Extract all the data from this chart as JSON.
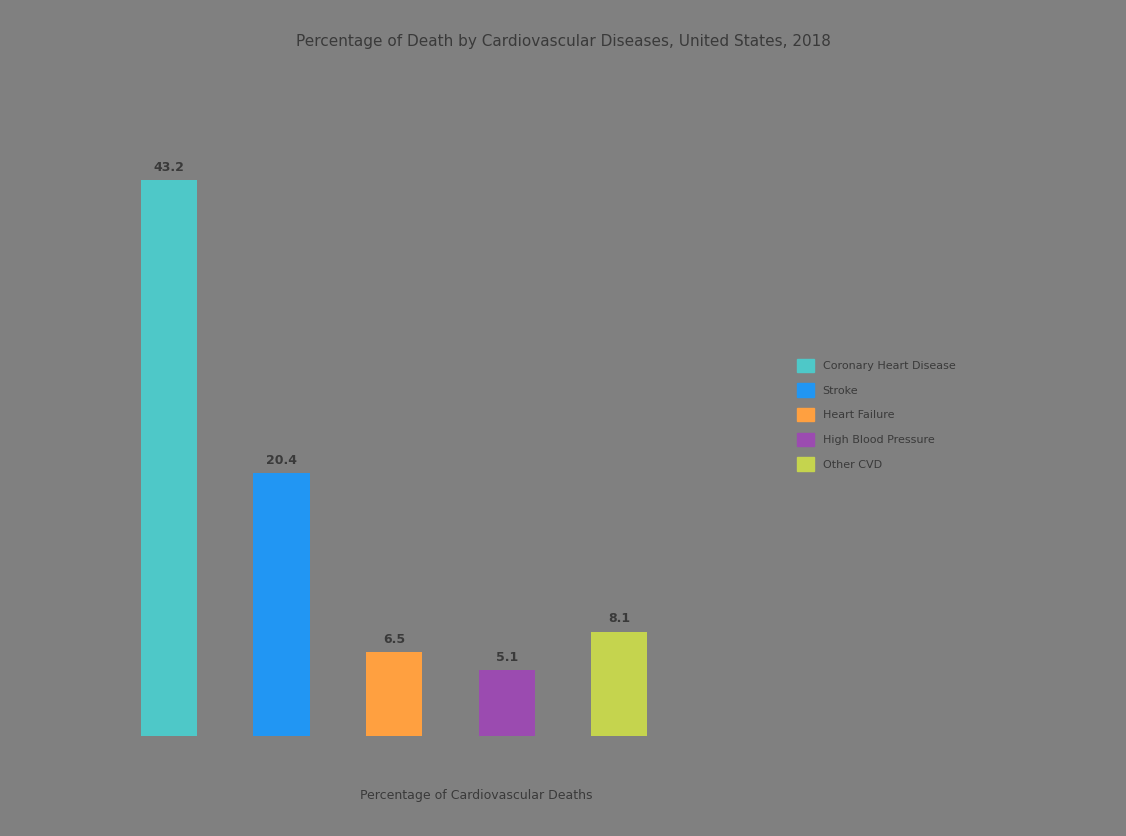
{
  "title": "Percentage of Death by Cardiovascular Diseases, United States, 2018",
  "categories": [
    "Coronary Heart Disease",
    "Stroke",
    "Heart Failure",
    "High Blood Pressure",
    "Other CVD"
  ],
  "values": [
    43.2,
    20.4,
    6.5,
    5.1,
    8.1
  ],
  "bar_colors": [
    "#4EC8C8",
    "#2196F3",
    "#FFA040",
    "#9B4BB0",
    "#C5D44E"
  ],
  "legend_labels": [
    "Coronary Heart Disease",
    "Stroke",
    "Heart Failure",
    "High Blood Pressure",
    "Other CVD"
  ],
  "xlabel": "Percentage of Cardiovascular Deaths",
  "ylabel": "",
  "background_color": "#808080",
  "title_fontsize": 11,
  "label_fontsize": 9,
  "bar_label_fontsize": 9,
  "legend_fontsize": 8,
  "ylim": [
    0,
    52
  ]
}
